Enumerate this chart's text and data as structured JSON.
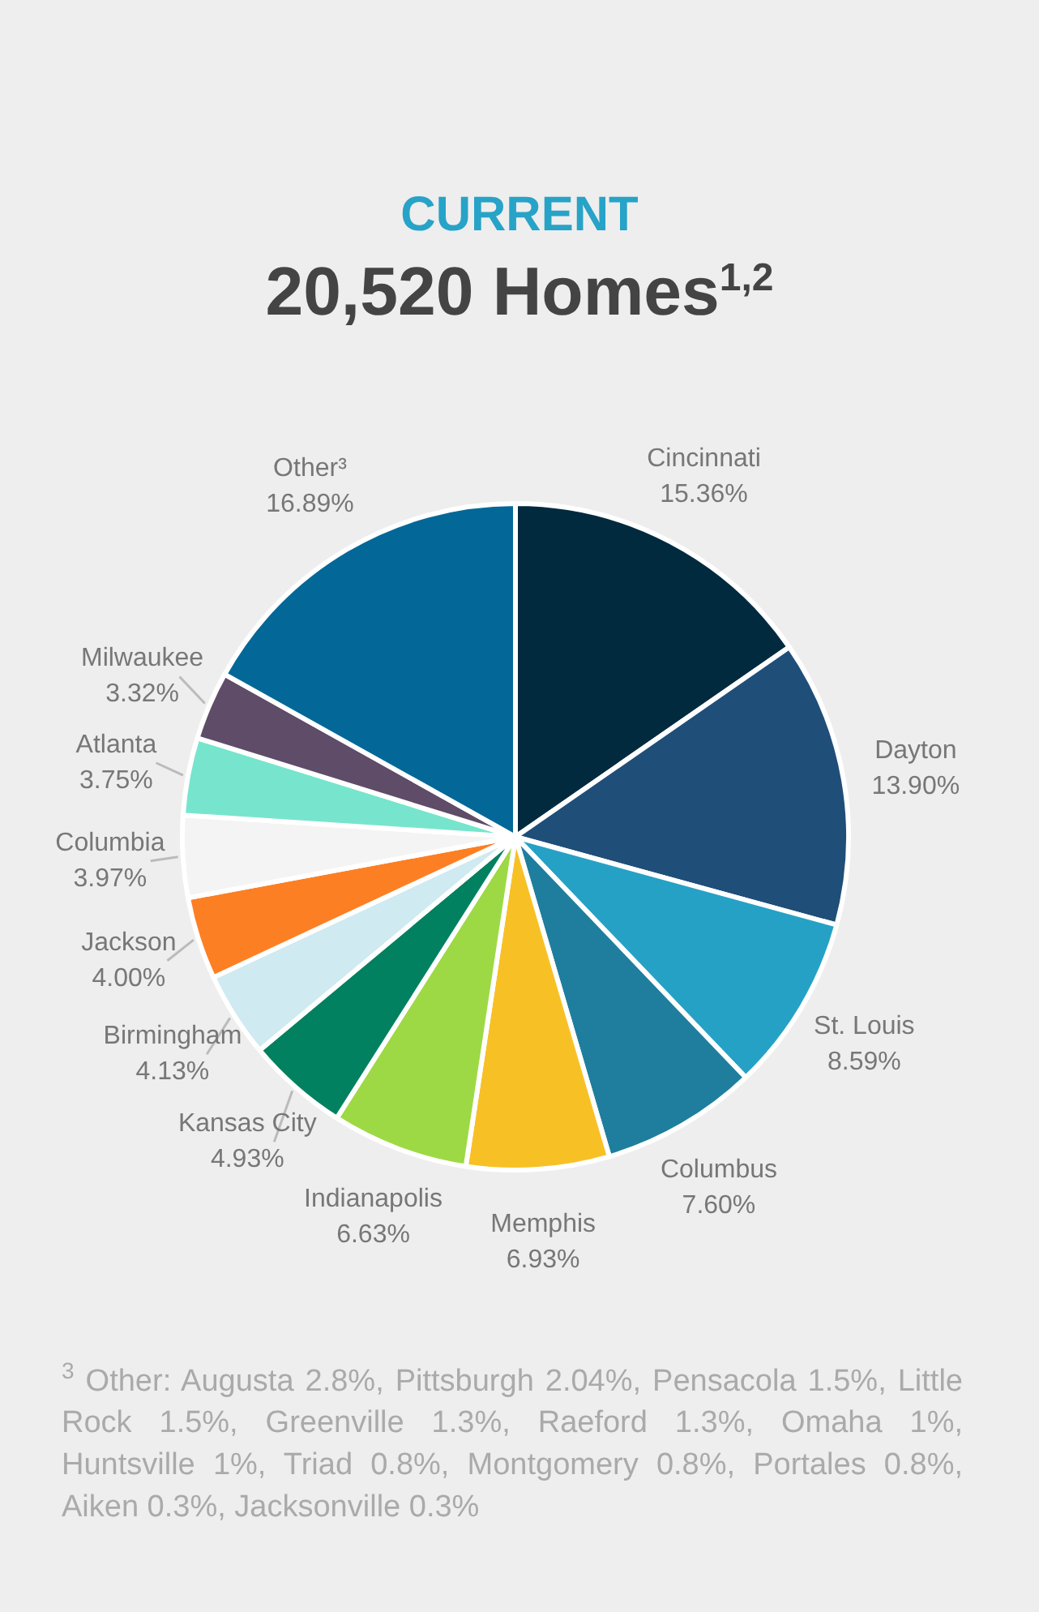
{
  "chart_data": {
    "type": "pie",
    "title": "CURRENT",
    "subtitle": "20,520 Homes$^{1,2}$",
    "categories": [
      "Cincinnati",
      "Dayton",
      "St. Louis",
      "Columbus",
      "Memphis",
      "Indianapolis",
      "Kansas City",
      "Birmingham",
      "Jackson",
      "Columbia",
      "Atlanta",
      "Milwaukee",
      "Other³"
    ],
    "values": [
      15.36,
      13.9,
      8.59,
      7.6,
      6.93,
      6.63,
      4.93,
      4.13,
      4.0,
      3.97,
      3.75,
      3.32,
      16.89
    ],
    "value_labels": [
      "15.36%",
      "13.90%",
      "8.59%",
      "7.60%",
      "6.93%",
      "6.63%",
      "4.93%",
      "4.13%",
      "4.00%",
      "3.97%",
      "3.75%",
      "3.32%",
      "16.89%"
    ],
    "colors": [
      "#022a3f",
      "#1f4e79",
      "#26a1c6",
      "#1f7e9e",
      "#f7c126",
      "#9dd944",
      "#028160",
      "#cfeaf1",
      "#fd7f23",
      "#f4f4f4",
      "#77e5cd",
      "#5f4c68",
      "#036897"
    ],
    "annotations": [
      "$^{3}$ Other: Augusta 2.8%, Pittsburgh 2.04%, Pensacola 1.5%, Little Rock 1.5%, Greenville 1.3%, Raeford 1.3%, Omaha 1%, Huntsville 1%, Triad 0.8%,  Montgomery 0.8%, Portales 0.8%, Aiken 0.3%, Jacksonville 0.3%"
    ]
  }
}
